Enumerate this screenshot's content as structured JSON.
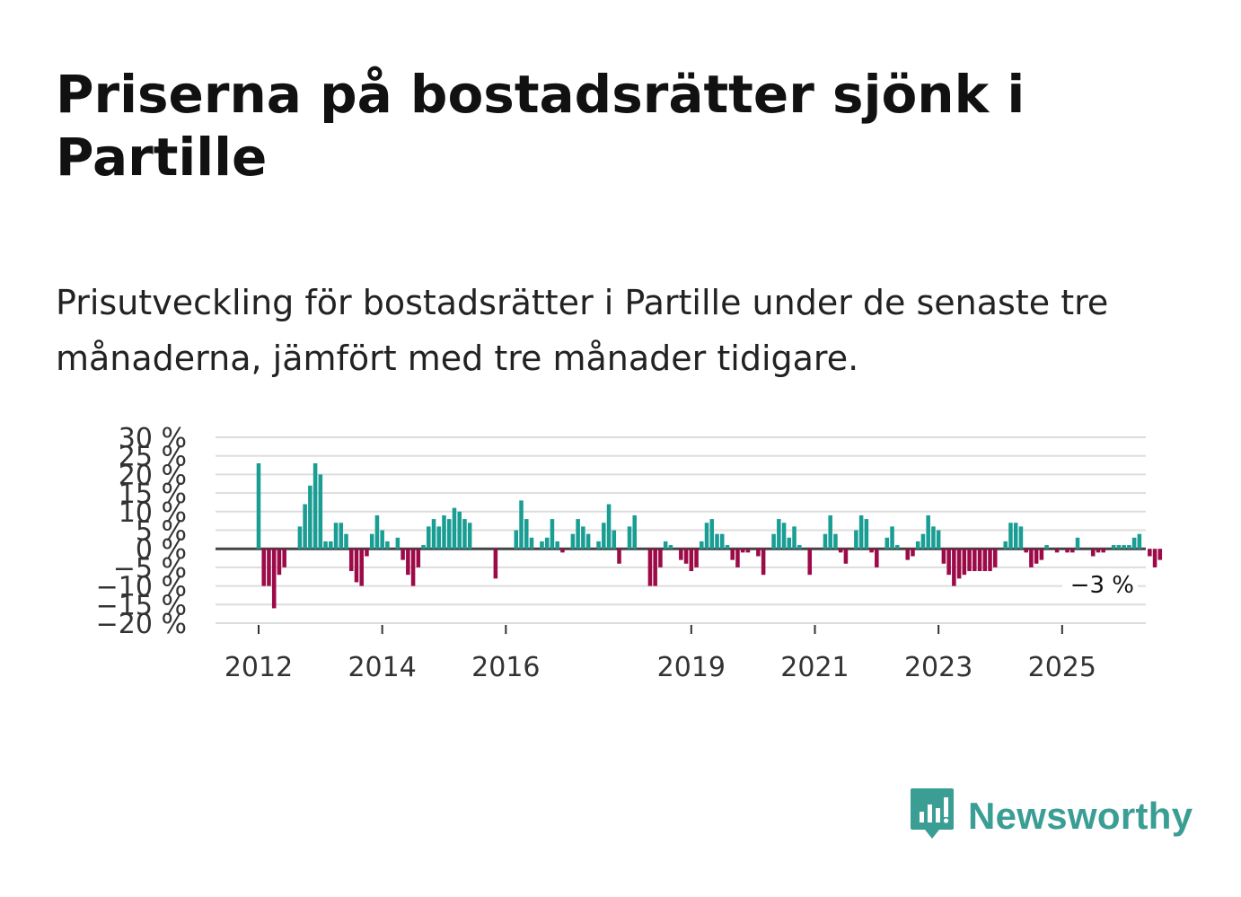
{
  "header": {
    "title": "Priserna på bostadsrätter sjönk i Partille",
    "subtitle": "Prisutveckling för bostadsrätter i Partille under de senaste tre månaderna, jämfört med tre månader tidigare."
  },
  "brand": {
    "name": "Newsworthy",
    "icon": "newsworthy-logo-icon",
    "color": "#3a9e95"
  },
  "colors": {
    "positive": "#1a9e94",
    "negative": "#9c0b48",
    "grid": "#dddddd",
    "zero_line": "#444444"
  },
  "chart_data": {
    "type": "bar",
    "title": "Priserna på bostadsrätter sjönk i Partille",
    "xlabel": "",
    "ylabel": "",
    "ylim": [
      -20,
      30
    ],
    "yticks": [
      30,
      25,
      20,
      15,
      10,
      5,
      0,
      -5,
      -10,
      -15,
      -20
    ],
    "ytick_labels": [
      "30 %",
      "25 %",
      "20 %",
      "15 %",
      "10 %",
      "5 %",
      "0 %",
      "−5 %",
      "−10 %",
      "−15 %",
      "−20 %"
    ],
    "xticks": [
      2012,
      2014,
      2016,
      2019,
      2021,
      2023,
      2025
    ],
    "xtick_labels": [
      "2012",
      "2014",
      "2016",
      "2019",
      "2021",
      "2023",
      "2025"
    ],
    "start": "2012-01",
    "end_label": "−3 %",
    "values": [
      23,
      -10,
      -10,
      -16,
      -7,
      -5,
      0,
      0,
      6,
      12,
      17,
      23,
      20,
      2,
      2,
      7,
      7,
      4,
      -6,
      -9,
      -10,
      -2,
      4,
      9,
      5,
      2,
      0,
      3,
      -3,
      -7,
      -10,
      -5,
      1,
      6,
      8,
      6,
      9,
      8,
      11,
      10,
      8,
      7,
      0,
      0,
      0,
      0,
      -8,
      0,
      0,
      0,
      5,
      13,
      8,
      3,
      0,
      2,
      3,
      8,
      2,
      -1,
      0,
      4,
      8,
      6,
      4,
      0,
      2,
      7,
      12,
      5,
      -4,
      0,
      6,
      9,
      0,
      0,
      -10,
      -10,
      -5,
      2,
      1,
      0,
      -3,
      -4,
      -6,
      -5,
      2,
      7,
      8,
      4,
      4,
      1,
      -3,
      -5,
      -1,
      -1,
      0,
      -2,
      -7,
      0,
      4,
      8,
      7,
      3,
      6,
      1,
      0,
      -7,
      0,
      0,
      4,
      9,
      4,
      -1,
      -4,
      0,
      5,
      9,
      8,
      -1,
      -5,
      0,
      3,
      6,
      1,
      0,
      -3,
      -2,
      2,
      4,
      9,
      6,
      5,
      -4,
      -7,
      -10,
      -8,
      -7,
      -6,
      -6,
      -6,
      -6,
      -6,
      -5,
      0,
      2,
      7,
      7,
      6,
      -1,
      -5,
      -4,
      -3,
      1,
      0,
      -1,
      0,
      -1,
      -1,
      3,
      0,
      0,
      -2,
      -1,
      -1,
      0,
      1,
      1,
      1,
      1,
      3,
      4,
      0,
      -2,
      -5,
      -3
    ]
  }
}
